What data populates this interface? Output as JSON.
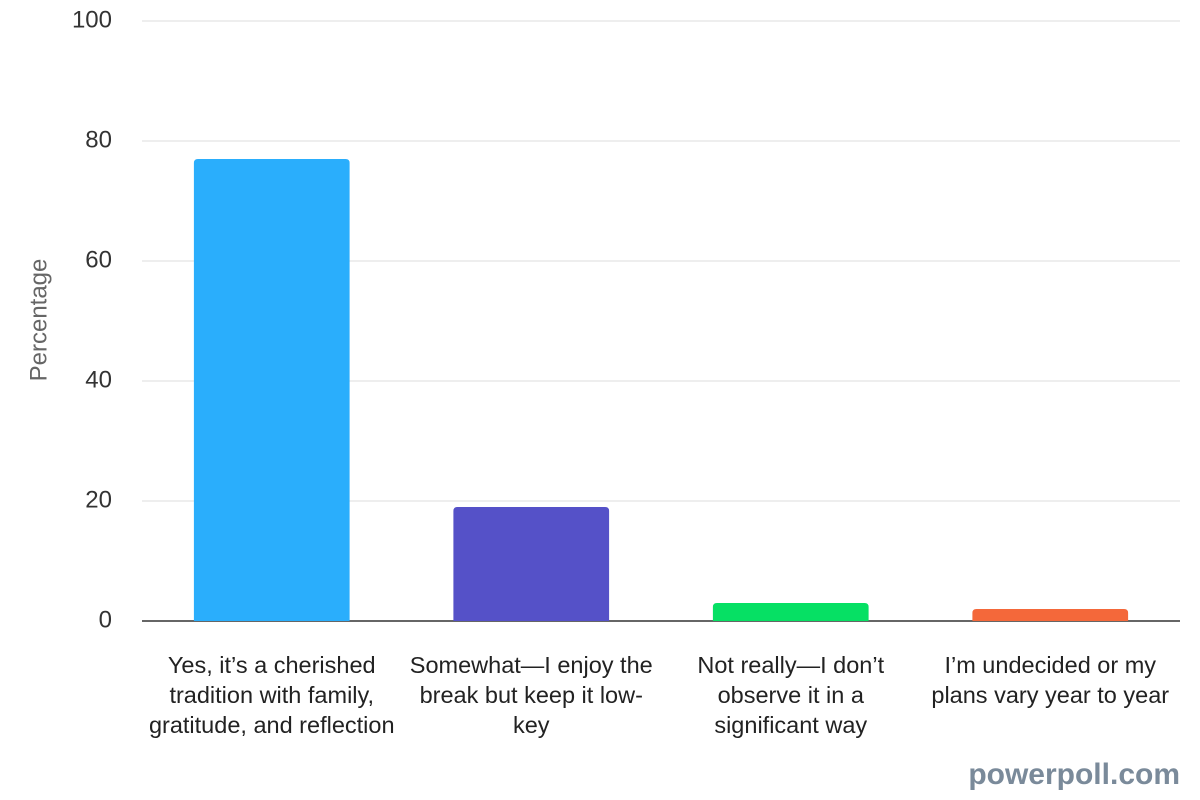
{
  "chart_data": {
    "type": "bar",
    "y_label": "Percentage",
    "categories": [
      "Yes, it’s a cherished tradition with family, gratitude, and reflection",
      "Somewhat—I enjoy the break but keep it low-key",
      "Not really—I don’t observe it in a significant way",
      "I’m undecided or my plans vary year to year"
    ],
    "values": [
      77,
      19,
      3,
      2
    ],
    "colors": [
      "#2aaefc",
      "#5551c8",
      "#06e064",
      "#f4683a"
    ],
    "ylim": [
      0,
      100
    ],
    "yticks": [
      0,
      20,
      40,
      60,
      80,
      100
    ],
    "grid": true,
    "watermark": "powerpoll.com"
  }
}
